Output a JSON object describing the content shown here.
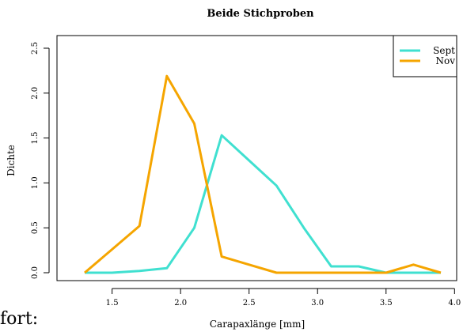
{
  "chart_data": {
    "type": "line",
    "title": "Beide Stichproben",
    "xlabel": "Carapaxlänge [mm]",
    "ylabel": "Dichte",
    "xlim": [
      1.2,
      4.0
    ],
    "ylim": [
      0,
      2.5
    ],
    "xticks": [
      "1.5",
      "2.0",
      "2.5",
      "3.0",
      "3.5",
      "4.0"
    ],
    "yticks": [
      "0.0",
      "0.5",
      "1.0",
      "1.5",
      "2.0",
      "2.5"
    ],
    "legend_position": "top-right",
    "grid": false,
    "series": [
      {
        "name": "Sept",
        "color": "#40e0d0",
        "x": [
          1.3,
          1.5,
          1.7,
          1.9,
          2.1,
          2.3,
          2.5,
          2.7,
          2.9,
          3.1,
          3.3,
          3.5,
          3.7,
          3.9
        ],
        "y": [
          0.0,
          0.0,
          0.02,
          0.05,
          0.5,
          1.53,
          1.25,
          0.97,
          0.5,
          0.07,
          0.07,
          0.0,
          0.0,
          0.0
        ]
      },
      {
        "name": "Nov",
        "color": "#f5a500",
        "x": [
          1.3,
          1.5,
          1.7,
          1.9,
          2.1,
          2.3,
          2.5,
          2.7,
          2.9,
          3.1,
          3.3,
          3.5,
          3.7,
          3.9
        ],
        "y": [
          0.0,
          0.26,
          0.52,
          2.19,
          1.66,
          0.18,
          0.09,
          0.0,
          0.0,
          0.0,
          0.0,
          0.0,
          0.09,
          0.0
        ]
      }
    ]
  },
  "stray_text": "fort:"
}
